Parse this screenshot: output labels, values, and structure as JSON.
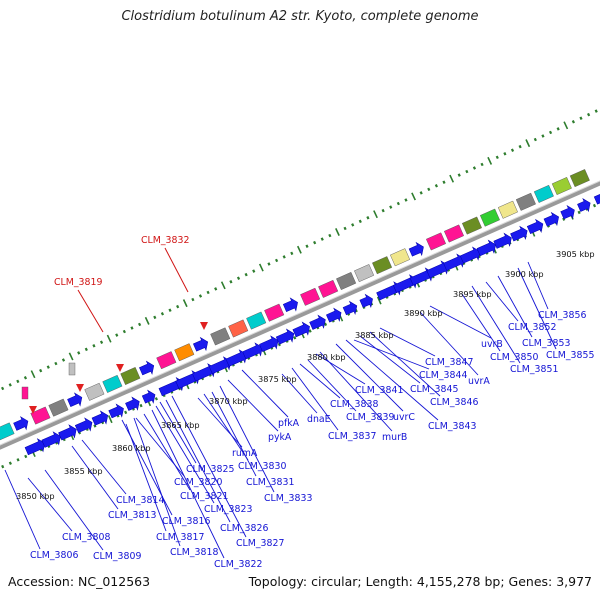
{
  "title": "Clostridium botulinum A2 str. Kyoto, complete genome",
  "footer": {
    "accession": "Accession: NC_012563",
    "stats": "Topology: circular; Length: 4,155,278 bp; Genes: 3,977"
  },
  "colors": {
    "gene_arrow": "#1a1aee",
    "label_blue": "#1414d4",
    "label_red": "#d01414",
    "tick_green": "#2e7d2e",
    "backbone": "#8a8a8a",
    "feature_palette": [
      "#ff1493",
      "#00cccc",
      "#808080",
      "#6b8e23",
      "#f0e68c",
      "#c0c0c0",
      "#ff8c00",
      "#32cd32",
      "#9acd32",
      "#ff6347"
    ]
  },
  "kbp_ticks": [
    {
      "value": 3850,
      "label": "3850 kbp"
    },
    {
      "value": 3855,
      "label": "3855 kbp"
    },
    {
      "value": 3860,
      "label": "3860 kbp"
    },
    {
      "value": 3865,
      "label": "3865 kbp"
    },
    {
      "value": 3870,
      "label": "3870 kbp"
    },
    {
      "value": 3875,
      "label": "3875 kbp"
    },
    {
      "value": 3880,
      "label": "3880 kbp"
    },
    {
      "value": 3885,
      "label": "3885 kbp"
    },
    {
      "value": 3890,
      "label": "3890 kbp"
    },
    {
      "value": 3895,
      "label": "3895 kbp"
    },
    {
      "value": 3900,
      "label": "3900 kbp"
    },
    {
      "value": 3905,
      "label": "3905 kbp"
    }
  ],
  "red_labels": [
    {
      "text": "CLM_3819"
    },
    {
      "text": "CLM_3832"
    }
  ],
  "gene_labels": [
    {
      "text": "CLM_3806"
    },
    {
      "text": "CLM_3808"
    },
    {
      "text": "CLM_3809"
    },
    {
      "text": "CLM_3813"
    },
    {
      "text": "CLM_3814"
    },
    {
      "text": "CLM_3816"
    },
    {
      "text": "CLM_3817"
    },
    {
      "text": "CLM_3818"
    },
    {
      "text": "CLM_3820"
    },
    {
      "text": "CLM_3821"
    },
    {
      "text": "CLM_3822"
    },
    {
      "text": "CLM_3823"
    },
    {
      "text": "CLM_3825"
    },
    {
      "text": "CLM_3826"
    },
    {
      "text": "CLM_3827"
    },
    {
      "text": "rumA"
    },
    {
      "text": "CLM_3830"
    },
    {
      "text": "CLM_3831"
    },
    {
      "text": "CLM_3833"
    },
    {
      "text": "pykA"
    },
    {
      "text": "pfkA"
    },
    {
      "text": "dnaE"
    },
    {
      "text": "CLM_3837"
    },
    {
      "text": "CLM_3838"
    },
    {
      "text": "CLM_3839"
    },
    {
      "text": "CLM_3841"
    },
    {
      "text": "murB"
    },
    {
      "text": "uvrC"
    },
    {
      "text": "CLM_3843"
    },
    {
      "text": "CLM_3844"
    },
    {
      "text": "CLM_3845"
    },
    {
      "text": "CLM_3846"
    },
    {
      "text": "CLM_3847"
    },
    {
      "text": "uvrA"
    },
    {
      "text": "uvrB"
    },
    {
      "text": "CLM_3850"
    },
    {
      "text": "CLM_3851"
    },
    {
      "text": "CLM_3852"
    },
    {
      "text": "CLM_3853"
    },
    {
      "text": "CLM_3855"
    },
    {
      "text": "CLM_3856"
    }
  ]
}
